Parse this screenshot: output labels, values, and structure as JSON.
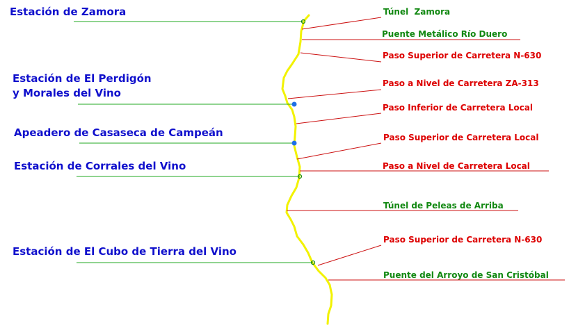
{
  "colors": {
    "track": "#f2f200",
    "station_text": "#1010cc",
    "station_line": "#22aa22",
    "station_dot": "#1e6fe6",
    "feature_line": "#cc1111",
    "feature_red": "#dd0000",
    "feature_green": "#118811"
  },
  "stations": [
    {
      "label": [
        "Estación de Zamora"
      ],
      "dot": "small-green"
    },
    {
      "label": [
        "Estación de El Perdigón",
        "y Morales del Vino"
      ],
      "dot": "blue"
    },
    {
      "label": [
        "Apeadero de Casaseca de Campeán"
      ],
      "dot": "blue"
    },
    {
      "label": [
        "Estación de Corrales del Vino"
      ],
      "dot": "small-green"
    },
    {
      "label": [
        "Estación de El Cubo de Tierra del Vino"
      ],
      "dot": "small-green"
    }
  ],
  "features": [
    {
      "label": "Túnel  Zamora",
      "type": "tunnel",
      "color": "green"
    },
    {
      "label": "Puente Metálico Río Duero",
      "type": "bridge",
      "color": "green"
    },
    {
      "label": "Paso Superior de Carretera N-630",
      "type": "road-crossing",
      "color": "red"
    },
    {
      "label": "Paso a Nivel de Carretera ZA-313",
      "type": "road-crossing",
      "color": "red"
    },
    {
      "label": "Paso Inferior de Carretera Local",
      "type": "road-crossing",
      "color": "red"
    },
    {
      "label": "Paso Superior de Carretera Local",
      "type": "road-crossing",
      "color": "red"
    },
    {
      "label": "Paso a Nivel de Carretera Local",
      "type": "road-crossing",
      "color": "red"
    },
    {
      "label": "Túnel de Peleas de Arriba",
      "type": "tunnel",
      "color": "green"
    },
    {
      "label": "Paso Superior de Carretera N-630",
      "type": "road-crossing",
      "color": "red"
    },
    {
      "label": "Puente del Arroyo de San Cristóbal",
      "type": "bridge",
      "color": "green"
    }
  ]
}
